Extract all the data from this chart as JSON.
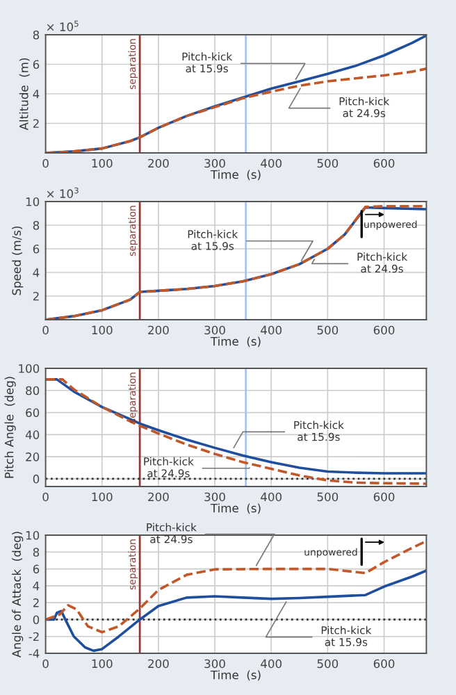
{
  "chart_data": [
    {
      "type": "line",
      "xlabel": "Time  (s)",
      "ylabel": "Altitude  (m)",
      "xlim": [
        0,
        675
      ],
      "xticks": [
        0,
        100,
        200,
        300,
        400,
        500,
        600
      ],
      "ylim": [
        0,
        8
      ],
      "yticks": [
        2,
        4,
        6,
        8
      ],
      "grid": true,
      "marker": "none",
      "series": [
        {
          "color": "#1f4e9c",
          "line_style": "solid",
          "x": [
            0,
            50,
            100,
            150,
            167,
            200,
            250,
            300,
            350,
            400,
            450,
            500,
            550,
            600,
            650,
            675
          ],
          "values": [
            0,
            0.1,
            0.3,
            0.8,
            1.05,
            1.7,
            2.5,
            3.15,
            3.75,
            4.35,
            4.85,
            5.35,
            5.9,
            6.6,
            7.45,
            7.95
          ]
        },
        {
          "color": "#c0582a",
          "line_style": "dashed",
          "x": [
            0,
            50,
            100,
            150,
            167,
            200,
            250,
            300,
            350,
            400,
            450,
            500,
            550,
            600,
            650,
            675
          ],
          "values": [
            0,
            0.1,
            0.3,
            0.8,
            1.05,
            1.7,
            2.5,
            3.1,
            3.7,
            4.15,
            4.55,
            4.85,
            5.05,
            5.25,
            5.5,
            5.7
          ]
        }
      ],
      "ref_lines": [
        {
          "axis": "x",
          "value": 167,
          "label": "separation",
          "color": "#8b3a3a",
          "line_style": "solid"
        },
        {
          "axis": "x",
          "value": 355,
          "color": "#a9c4e8",
          "line_style": "solid"
        }
      ],
      "annotations": [
        "× 10$^{5}$",
        {
          "text": "Pitch-kick\nat 15.9s",
          "x": 440,
          "y": 4.75
        },
        {
          "text": "Pitch-kick\nat 24.9s",
          "x": 455,
          "y": 4.6
        }
      ]
    },
    {
      "type": "line",
      "xlabel": "Time  (s)",
      "ylabel": "Speed (m/s)",
      "xlim": [
        0,
        675
      ],
      "xticks": [
        0,
        100,
        200,
        300,
        400,
        500,
        600
      ],
      "ylim": [
        0,
        10
      ],
      "yticks": [
        2,
        4,
        6,
        8,
        10
      ],
      "grid": true,
      "marker": "none",
      "series": [
        {
          "color": "#1f4e9c",
          "line_style": "solid",
          "x": [
            0,
            50,
            100,
            150,
            167,
            200,
            250,
            300,
            350,
            400,
            450,
            500,
            530,
            567,
            600,
            675
          ],
          "values": [
            0,
            0.3,
            0.8,
            1.7,
            2.35,
            2.45,
            2.6,
            2.85,
            3.25,
            3.85,
            4.7,
            6.0,
            7.2,
            9.5,
            9.45,
            9.35
          ]
        },
        {
          "color": "#c0582a",
          "line_style": "dashed",
          "x": [
            0,
            50,
            100,
            150,
            167,
            200,
            250,
            300,
            350,
            400,
            450,
            500,
            530,
            567,
            600,
            675
          ],
          "values": [
            0,
            0.3,
            0.8,
            1.7,
            2.35,
            2.45,
            2.6,
            2.85,
            3.25,
            3.85,
            4.7,
            6.0,
            7.2,
            9.55,
            9.6,
            9.6
          ]
        }
      ],
      "ref_lines": [
        {
          "axis": "x",
          "value": 167,
          "label": "separation",
          "color": "#8b3a3a",
          "line_style": "solid"
        },
        {
          "axis": "x",
          "value": 355,
          "color": "#a9c4e8",
          "line_style": "solid"
        }
      ],
      "annotations": [
        "× 10$^{3}$",
        {
          "text": "Pitch-kick\nat 15.9s",
          "x": 450,
          "y": 4.7
        },
        {
          "text": "Pitch-kick\nat 24.9s",
          "x": 480,
          "y": 5.4
        },
        "unpowered"
      ]
    },
    {
      "type": "line",
      "xlabel": "Time  (s)",
      "ylabel": "Pitch Angle  (deg)",
      "xlim": [
        0,
        675
      ],
      "xticks": [
        0,
        100,
        200,
        300,
        400,
        500,
        600
      ],
      "ylim": [
        -7,
        100
      ],
      "yticks": [
        0,
        20,
        40,
        60,
        80,
        100
      ],
      "grid": true,
      "marker": "none",
      "series": [
        {
          "color": "#1f4e9c",
          "line_style": "solid",
          "x": [
            0,
            20,
            50,
            100,
            150,
            167,
            200,
            250,
            300,
            350,
            400,
            450,
            500,
            550,
            600,
            675
          ],
          "values": [
            90,
            90,
            79,
            65,
            54,
            50,
            44,
            35.5,
            28,
            21,
            15,
            10,
            6.5,
            5.5,
            5,
            5
          ]
        },
        {
          "color": "#c0582a",
          "line_style": "dashed",
          "x": [
            0,
            30,
            50,
            100,
            150,
            167,
            200,
            250,
            300,
            350,
            400,
            450,
            500,
            550,
            600,
            675
          ],
          "values": [
            90,
            90,
            81,
            65,
            52,
            48,
            41,
            31,
            22.5,
            15,
            9,
            3,
            -1.5,
            -3.5,
            -4,
            -4.5
          ]
        }
      ],
      "ref_lines": [
        {
          "axis": "x",
          "value": 167,
          "label": "separation",
          "color": "#8b3a3a",
          "line_style": "solid"
        },
        {
          "axis": "x",
          "value": 355,
          "color": "#a9c4e8",
          "line_style": "solid"
        },
        {
          "axis": "y",
          "value": 0,
          "color": "#333333",
          "line_style": "dotted"
        }
      ],
      "annotations": [
        {
          "text": "Pitch-kick\nat 15.9s",
          "x": 330,
          "y": 25
        },
        {
          "text": "Pitch-kick\nat 24.9s",
          "x": 365,
          "y": 13
        }
      ]
    },
    {
      "type": "line",
      "xlabel": "Time  (s)",
      "ylabel": "Angle of Attack  (deg)",
      "xlim": [
        0,
        675
      ],
      "xticks": [
        0,
        100,
        200,
        300,
        400,
        500,
        600
      ],
      "ylim": [
        -4,
        10
      ],
      "yticks": [
        -4,
        -2,
        0,
        2,
        4,
        6,
        8,
        10
      ],
      "grid": true,
      "marker": "none",
      "series": [
        {
          "color": "#1f4e9c",
          "line_style": "solid",
          "x": [
            0,
            15,
            20,
            28,
            35,
            50,
            70,
            85,
            100,
            130,
            167,
            200,
            250,
            300,
            350,
            400,
            450,
            500,
            567,
            600,
            650,
            675
          ],
          "values": [
            0,
            0,
            0.8,
            1,
            0,
            -2,
            -3.3,
            -3.7,
            -3.5,
            -2,
            0,
            1.6,
            2.6,
            2.75,
            2.6,
            2.45,
            2.55,
            2.7,
            2.9,
            3.9,
            5.1,
            5.8
          ]
        },
        {
          "color": "#c0582a",
          "line_style": "dashed",
          "x": [
            0,
            25,
            40,
            55,
            75,
            100,
            130,
            167,
            200,
            250,
            300,
            400,
            500,
            567,
            600,
            650,
            675
          ],
          "values": [
            0,
            0.6,
            1.7,
            1.2,
            -0.8,
            -1.5,
            -0.8,
            1.3,
            3.5,
            5.3,
            5.95,
            6,
            6,
            5.5,
            6.8,
            8.5,
            9.3
          ]
        }
      ],
      "ref_lines": [
        {
          "axis": "x",
          "value": 167,
          "label": "separation",
          "color": "#8b3a3a",
          "line_style": "solid"
        },
        {
          "axis": "y",
          "value": 0,
          "color": "#333333",
          "line_style": "dotted"
        }
      ],
      "annotations": [
        {
          "text": "Pitch-kick\nat 24.9s",
          "x": 370,
          "y": 6
        },
        {
          "text": "Pitch-kick\nat 15.9s",
          "x": 430,
          "y": 2.5
        },
        "unpowered"
      ]
    }
  ]
}
